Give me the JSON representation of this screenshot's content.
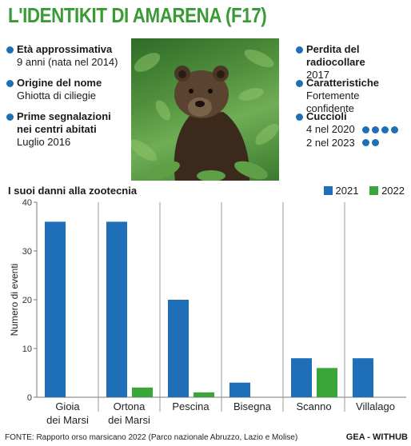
{
  "title": "L'IDENTIKIT DI AMARENA (F17)",
  "left_info": [
    {
      "label": "Età approssimativa",
      "value": "9 anni (nata nel 2014)"
    },
    {
      "label": "Origine del nome",
      "value": "Ghiotta di ciliegie"
    },
    {
      "label": "Prime segnalazioni nei centri abitati",
      "value": "Luglio 2016"
    }
  ],
  "right_info": [
    {
      "label": "Perdita del radiocollare",
      "value": "2017"
    },
    {
      "label": "Caratteristiche",
      "value": "Fortemente confidente"
    },
    {
      "label": "Cuccioli",
      "values": [
        {
          "text": "4 nel 2020",
          "dots": 4
        },
        {
          "text": "2 nel 2023",
          "dots": 2
        }
      ]
    }
  ],
  "photo": {
    "icon": "bear-photo"
  },
  "colors": {
    "series_2021": "#1f6fb8",
    "series_2022": "#3aa63a",
    "title": "#3a9a35",
    "accent": "#1f6fb8"
  },
  "chart_data": {
    "type": "bar",
    "title": "I suoi danni alla zootecnia",
    "ylabel": "Numero di eventi",
    "xlabel": "",
    "ylim": [
      0,
      40
    ],
    "yticks": [
      0,
      10,
      20,
      30,
      40
    ],
    "categories": [
      "Gioia dei Marsi",
      "Ortona dei Marsi",
      "Pescina",
      "Bisegna",
      "Scanno",
      "Villalago"
    ],
    "category_lines": [
      [
        "Gioia",
        "dei Marsi"
      ],
      [
        "Ortona",
        "dei Marsi"
      ],
      [
        "Pescina"
      ],
      [
        "Bisegna"
      ],
      [
        "Scanno"
      ],
      [
        "Villalago"
      ]
    ],
    "series": [
      {
        "name": "2021",
        "values": [
          36,
          36,
          20,
          3,
          8,
          8
        ]
      },
      {
        "name": "2022",
        "values": [
          0,
          2,
          1,
          0,
          6,
          0
        ]
      }
    ],
    "legend_position": "top-right",
    "grid": "vertical-separators"
  },
  "source": "FONTE: Rapporto orso marsicano 2022 (Parco nazionale Abruzzo, Lazio e Molise)",
  "brand": "GEA - WITHUB"
}
